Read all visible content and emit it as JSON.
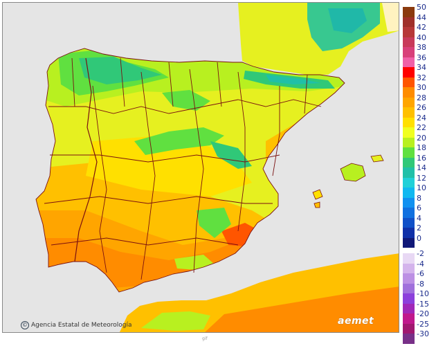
{
  "map": {
    "credit": "Agencia Estatal de Meteorología",
    "copyright_symbol": "©",
    "logo": "aemet",
    "footer_mark": "gif",
    "colors": {
      "sea": "#e5e5e5",
      "border": "#7a1010"
    }
  },
  "legend": {
    "positive": [
      {
        "label": "50",
        "color": "#8b3a0e"
      },
      {
        "label": "44",
        "color": "#a0302a"
      },
      {
        "label": "42",
        "color": "#b73838"
      },
      {
        "label": "40",
        "color": "#c83a5a"
      },
      {
        "label": "38",
        "color": "#d8407a"
      },
      {
        "label": "36",
        "color": "#f060a8"
      },
      {
        "label": "34",
        "color": "#ff0000"
      },
      {
        "label": "32",
        "color": "#ff5500"
      },
      {
        "label": "30",
        "color": "#ff8c00"
      },
      {
        "label": "28",
        "color": "#ffa500"
      },
      {
        "label": "26",
        "color": "#ffc000"
      },
      {
        "label": "24",
        "color": "#ffe000"
      },
      {
        "label": "22",
        "color": "#f0ff20"
      },
      {
        "label": "20",
        "color": "#b8f020"
      },
      {
        "label": "18",
        "color": "#60e040"
      },
      {
        "label": "16",
        "color": "#30c878"
      },
      {
        "label": "14",
        "color": "#20c0a8"
      },
      {
        "label": "12",
        "color": "#20d0d8"
      },
      {
        "label": "10",
        "color": "#10b8f0"
      },
      {
        "label": "8",
        "color": "#1090f0"
      },
      {
        "label": "6",
        "color": "#1070e0"
      },
      {
        "label": "4",
        "color": "#1050c8"
      },
      {
        "label": "2",
        "color": "#1030a8"
      },
      {
        "label": "0",
        "color": "#101878"
      }
    ],
    "negative": [
      {
        "label": "-2",
        "color": "#e8d8f4"
      },
      {
        "label": "-4",
        "color": "#d4b4ec"
      },
      {
        "label": "-6",
        "color": "#bc90e4"
      },
      {
        "label": "-8",
        "color": "#a070dc"
      },
      {
        "label": "-10",
        "color": "#8c40dc"
      },
      {
        "label": "-15",
        "color": "#a028b8"
      },
      {
        "label": "-20",
        "color": "#c0188c"
      },
      {
        "label": "-25",
        "color": "#a01870"
      },
      {
        "label": "-30",
        "color": "#783088"
      }
    ]
  }
}
